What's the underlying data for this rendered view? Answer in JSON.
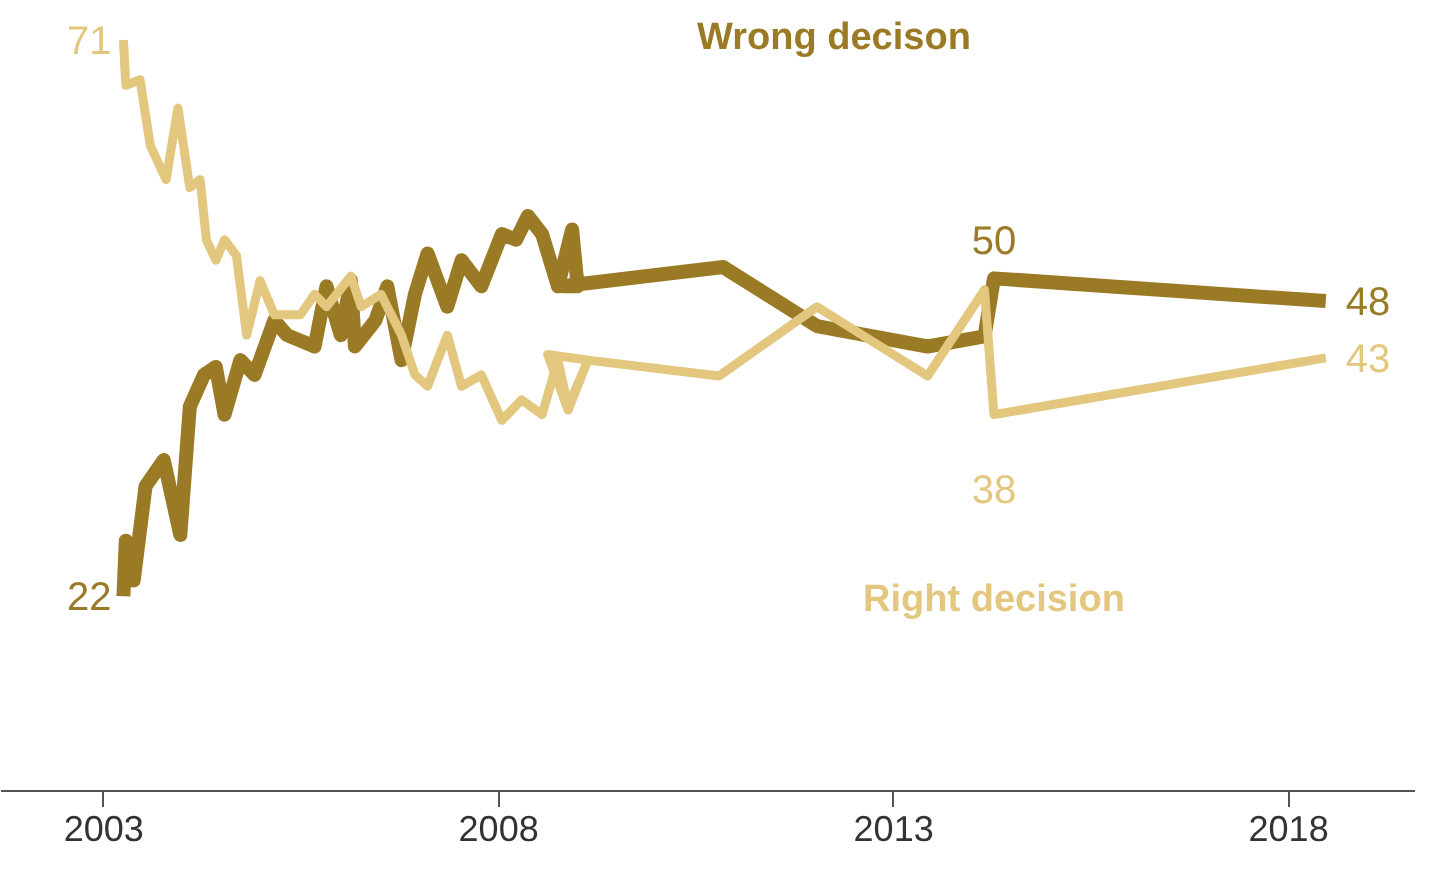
{
  "chart_data": {
    "type": "line",
    "xlim": [
      2001.7,
      2019.6
    ],
    "xticks": [
      2003,
      2008,
      2013,
      2018
    ],
    "tick_labels": "x",
    "grid": false,
    "marker": "none",
    "line_style": "solid",
    "series": [
      {
        "name": "Wrong decison",
        "color": "#9b7a26",
        "x": [
          2003.25,
          2003.28,
          2003.38,
          2003.53,
          2003.76,
          2003.97,
          2004.09,
          2004.27,
          2004.42,
          2004.53,
          2004.73,
          2004.91,
          2005.16,
          2005.32,
          2005.67,
          2005.82,
          2006.0,
          2006.13,
          2006.18,
          2006.44,
          2006.59,
          2006.77,
          2006.94,
          2007.1,
          2007.35,
          2007.53,
          2007.78,
          2008.04,
          2008.22,
          2008.37,
          2008.55,
          2008.75,
          2008.93,
          2009.0,
          2008.8,
          2010.84,
          2012.03,
          2013.43,
          2014.15,
          2014.27,
          2018.47
        ],
        "values": [
          22,
          26.9,
          23.4,
          31.7,
          34,
          27.4,
          38.7,
          41.5,
          42.2,
          38,
          42.8,
          41.5,
          46.3,
          45,
          44,
          49.3,
          45,
          49.8,
          44,
          46.3,
          49.3,
          42.8,
          48.6,
          52.2,
          47.5,
          51.6,
          49.3,
          53.9,
          53.4,
          55.5,
          53.9,
          49.3,
          54.3,
          49.3,
          49.3,
          51,
          45.8,
          44,
          44.9,
          50,
          48
        ],
        "value_labels": [
          "22",
          null,
          null,
          null,
          null,
          null,
          null,
          null,
          null,
          null,
          null,
          null,
          null,
          null,
          null,
          null,
          null,
          null,
          null,
          null,
          null,
          null,
          null,
          null,
          null,
          null,
          null,
          null,
          null,
          null,
          null,
          null,
          null,
          null,
          null,
          null,
          null,
          null,
          null,
          "50",
          "48"
        ]
      },
      {
        "name": "Right decision",
        "color": "#e3c77f",
        "x": [
          2003.25,
          2003.28,
          2003.46,
          2003.59,
          2003.79,
          2003.94,
          2004.09,
          2004.22,
          2004.3,
          2004.42,
          2004.53,
          2004.68,
          2004.81,
          2004.98,
          2005.16,
          2005.49,
          2005.67,
          2005.82,
          2006.13,
          2006.26,
          2006.51,
          2006.77,
          2006.94,
          2007.1,
          2007.35,
          2007.53,
          2007.78,
          2008.04,
          2008.29,
          2008.55,
          2008.75,
          2008.88,
          2009.13,
          2008.62,
          2008.88,
          2009.13,
          2010.79,
          2012.03,
          2013.43,
          2014.15,
          2014.27,
          2018.47
        ],
        "values": [
          71,
          67,
          67.5,
          61.7,
          58.7,
          65,
          58,
          58.7,
          53.4,
          51.6,
          53.4,
          52,
          45,
          49.8,
          46.8,
          46.8,
          48.6,
          47.5,
          50.2,
          47.5,
          48.6,
          45,
          41.5,
          40.5,
          45,
          40.5,
          41.5,
          37.5,
          39.3,
          38,
          42.8,
          38.7,
          42.8,
          43.3,
          38.4,
          42.8,
          41.4,
          47.5,
          41.4,
          49,
          38,
          43
        ],
        "value_labels": [
          "71",
          null,
          null,
          null,
          null,
          null,
          null,
          null,
          null,
          null,
          null,
          null,
          null,
          null,
          null,
          null,
          null,
          null,
          null,
          null,
          null,
          null,
          null,
          null,
          null,
          null,
          null,
          null,
          null,
          null,
          null,
          null,
          null,
          null,
          null,
          null,
          null,
          null,
          null,
          null,
          "38",
          "43"
        ]
      }
    ]
  }
}
